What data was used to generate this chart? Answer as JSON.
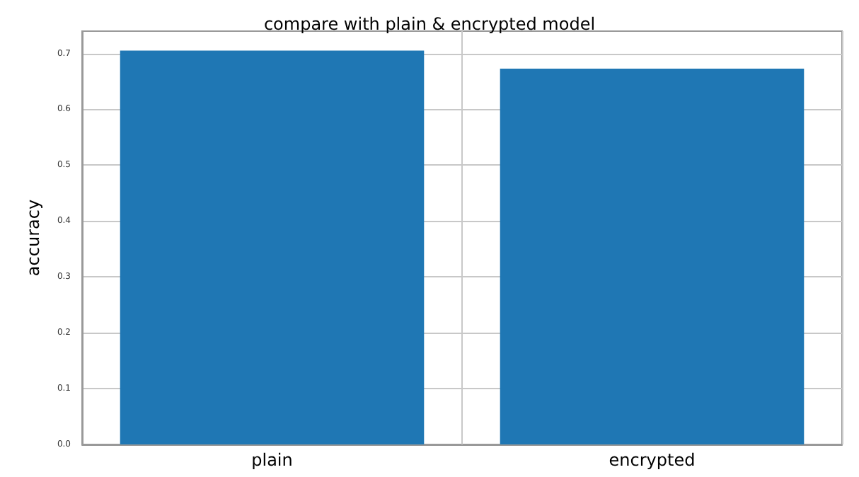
{
  "chart_data": {
    "type": "bar",
    "title": "compare with plain & encrypted model",
    "ylabel": "accuracy",
    "categories": [
      "plain",
      "encrypted"
    ],
    "values": [
      0.705,
      0.673
    ],
    "color": "#1f77b4",
    "ylim": [
      0,
      0.74
    ],
    "yticks": [
      {
        "value": 0,
        "label": "0.0"
      },
      {
        "value": 0.1,
        "label": "0.1"
      },
      {
        "value": 0.2,
        "label": "0.2"
      },
      {
        "value": 0.3,
        "label": "0.3"
      },
      {
        "value": 0.4,
        "label": "0.4"
      },
      {
        "value": 0.5,
        "label": "0.5"
      },
      {
        "value": 0.6,
        "label": "0.6"
      },
      {
        "value": 0.7,
        "label": "0.7"
      }
    ],
    "grid": true
  }
}
